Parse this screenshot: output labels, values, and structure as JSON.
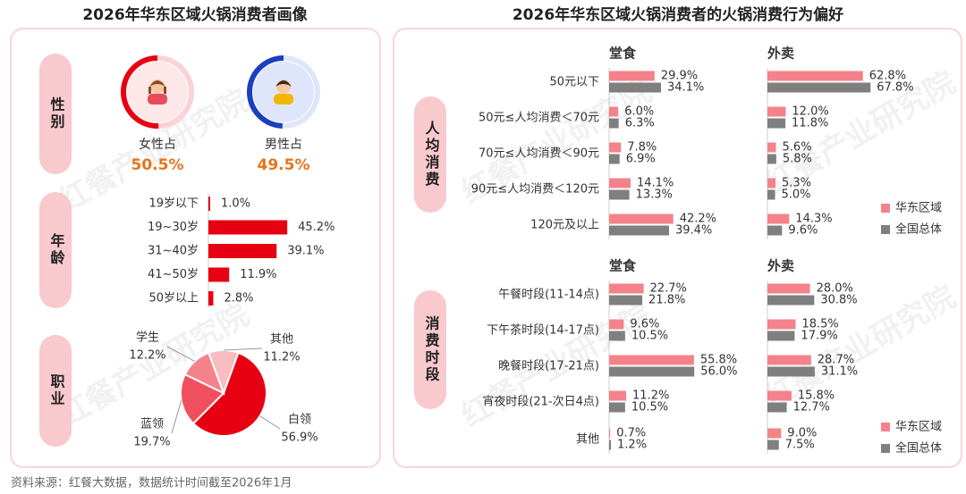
{
  "watermark": "红餐产业研究院",
  "source": "资料来源：红餐大数据，数据统计时间截至2026年1月",
  "left": {
    "title": "2026年华东区域火锅消费者画像",
    "gender": {
      "label": "性别",
      "items": [
        {
          "name": "女性占",
          "value": 50.5,
          "value_label": "50.5%",
          "color": "#e60012"
        },
        {
          "name": "男性占",
          "value": 49.5,
          "value_label": "49.5%",
          "color": "#1a3fc0"
        }
      ]
    },
    "age": {
      "label": "年龄",
      "type": "bar",
      "color": "#e60012",
      "categories": [
        "19岁以下",
        "19~30岁",
        "31~40岁",
        "41~50岁",
        "50岁以上"
      ],
      "values": [
        1.0,
        45.2,
        39.1,
        11.9,
        2.8
      ],
      "value_labels": [
        "1.0%",
        "45.2%",
        "39.1%",
        "11.9%",
        "2.8%"
      ]
    },
    "job": {
      "label": "职业",
      "type": "pie",
      "categories": [
        "白领",
        "蓝领",
        "学生",
        "其他"
      ],
      "values": [
        56.9,
        19.7,
        12.2,
        11.2
      ],
      "value_labels": [
        "56.9%",
        "19.7%",
        "12.2%",
        "11.2%"
      ],
      "colors": [
        "#e60012",
        "#f0505e",
        "#f4828a",
        "#f9bcc0"
      ]
    }
  },
  "right": {
    "title": "2026年华东区域火锅消费者的火锅消费行为偏好",
    "sections": [
      {
        "label": "人均消费",
        "type": "bar",
        "categories": [
          "50元以下",
          "50元≤人均消费＜70元",
          "70元≤人均消费＜90元",
          "90元≤人均消费＜120元",
          "120元及以上"
        ],
        "panels": [
          {
            "title": "堂食",
            "series": [
              {
                "name": "华东区域",
                "color": "#f4828a",
                "values": [
                  29.9,
                  6.0,
                  7.8,
                  14.1,
                  42.2
                ],
                "value_labels": [
                  "29.9%",
                  "6.0%",
                  "7.8%",
                  "14.1%",
                  "42.2%"
                ]
              },
              {
                "name": "全国总体",
                "color": "#7f7f7f",
                "values": [
                  34.1,
                  6.3,
                  6.9,
                  13.3,
                  39.4
                ],
                "value_labels": [
                  "34.1%",
                  "6.3%",
                  "6.9%",
                  "13.3%",
                  "39.4%"
                ]
              }
            ]
          },
          {
            "title": "外卖",
            "series": [
              {
                "name": "华东区域",
                "color": "#f4828a",
                "values": [
                  62.8,
                  12.0,
                  5.6,
                  5.3,
                  14.3
                ],
                "value_labels": [
                  "62.8%",
                  "12.0%",
                  "5.6%",
                  "5.3%",
                  "14.3%"
                ]
              },
              {
                "name": "全国总体",
                "color": "#7f7f7f",
                "values": [
                  67.8,
                  11.8,
                  5.8,
                  5.0,
                  9.6
                ],
                "value_labels": [
                  "67.8%",
                  "11.8%",
                  "5.8%",
                  "5.0%",
                  "9.6%"
                ]
              }
            ]
          }
        ]
      },
      {
        "label": "消费时段",
        "type": "bar",
        "categories": [
          "午餐时段(11-14点)",
          "下午茶时段(14-17点)",
          "晚餐时段(17-21点)",
          "宵夜时段(21-次日4点)",
          "其他"
        ],
        "panels": [
          {
            "title": "堂食",
            "series": [
              {
                "name": "华东区域",
                "color": "#f4828a",
                "values": [
                  22.7,
                  9.6,
                  55.8,
                  11.2,
                  0.7
                ],
                "value_labels": [
                  "22.7%",
                  "9.6%",
                  "55.8%",
                  "11.2%",
                  "0.7%"
                ]
              },
              {
                "name": "全国总体",
                "color": "#7f7f7f",
                "values": [
                  21.8,
                  10.5,
                  56.0,
                  10.5,
                  1.2
                ],
                "value_labels": [
                  "21.8%",
                  "10.5%",
                  "56.0%",
                  "10.5%",
                  "1.2%"
                ]
              }
            ]
          },
          {
            "title": "外卖",
            "series": [
              {
                "name": "华东区域",
                "color": "#f4828a",
                "values": [
                  28.0,
                  18.5,
                  28.7,
                  15.8,
                  9.0
                ],
                "value_labels": [
                  "28.0%",
                  "18.5%",
                  "28.7%",
                  "15.8%",
                  "9.0%"
                ]
              },
              {
                "name": "全国总体",
                "color": "#7f7f7f",
                "values": [
                  30.8,
                  17.9,
                  31.1,
                  12.7,
                  7.5
                ],
                "value_labels": [
                  "30.8%",
                  "17.9%",
                  "31.1%",
                  "12.7%",
                  "7.5%"
                ]
              }
            ]
          }
        ]
      }
    ]
  }
}
